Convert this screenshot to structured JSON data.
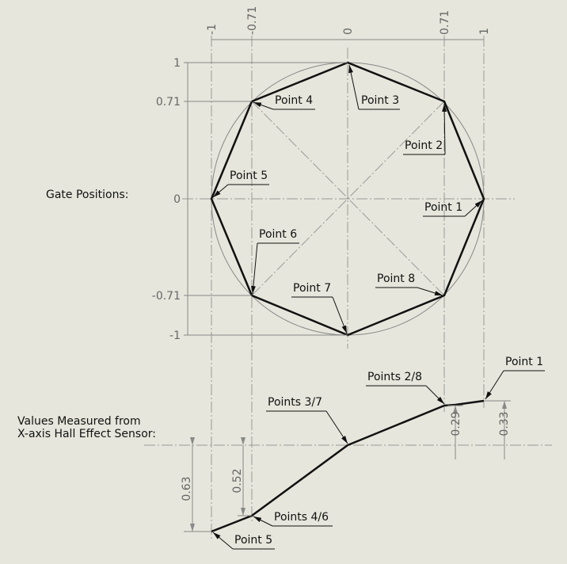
{
  "labels": {
    "gate_positions": "Gate Positions:",
    "measured_line1": "Values Measured from",
    "measured_line2": "X-axis Hall Effect Sensor:"
  },
  "top_dimensions": [
    "-1",
    "-0.71",
    "0",
    "0.71",
    "1"
  ],
  "left_dimensions": [
    "1",
    "0.71",
    "0",
    "-0.71",
    "-1"
  ],
  "gate_points": [
    "Point 1",
    "Point 2",
    "Point 3",
    "Point 4",
    "Point 5",
    "Point 6",
    "Point 7",
    "Point 8"
  ],
  "sensor_points": [
    "Point 1",
    "Points 2/8",
    "Points 3/7",
    "Points 4/6",
    "Point 5"
  ],
  "sensor_dimensions": [
    "0.29",
    "0.33",
    "0.63",
    "0.52"
  ]
}
